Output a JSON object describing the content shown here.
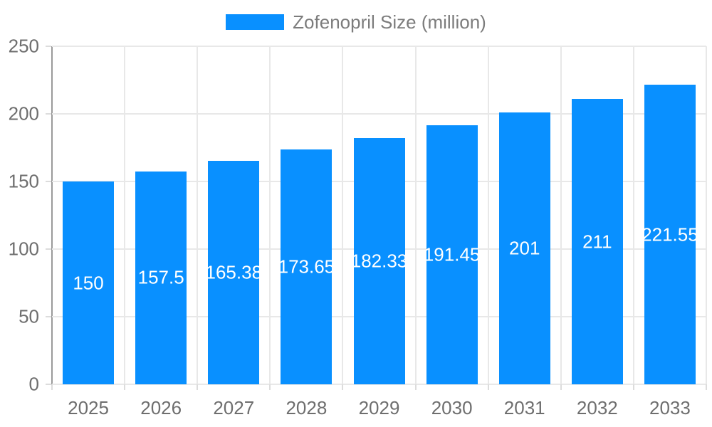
{
  "legend": {
    "label": "Zofenopril Size (million)"
  },
  "colors": {
    "bar": "#0990FF",
    "grid": "#E8E8E8",
    "axis": "#9A9A9A",
    "tick": "#DCDCDC",
    "tick_text": "#6E6E6E",
    "legend_text": "#7C7C7C",
    "bar_label_text": "#FFFFFF",
    "background": "#FFFFFF"
  },
  "chart_data": {
    "type": "bar",
    "title": "",
    "series_name": "Zofenopril Size (million)",
    "categories": [
      "2025",
      "2026",
      "2027",
      "2028",
      "2029",
      "2030",
      "2031",
      "2032",
      "2033"
    ],
    "values": [
      150,
      157.5,
      165.38,
      173.65,
      182.33,
      191.45,
      201,
      211,
      221.55
    ],
    "value_labels": [
      "150",
      "157.5",
      "165.38",
      "173.65",
      "182.33",
      "191.45",
      "201",
      "211",
      "221.55"
    ],
    "xlabel": "",
    "ylabel": "",
    "ylim": [
      0,
      250
    ],
    "yticks": [
      0,
      50,
      100,
      150,
      200,
      250
    ],
    "grid": true,
    "legend_position": "top"
  }
}
